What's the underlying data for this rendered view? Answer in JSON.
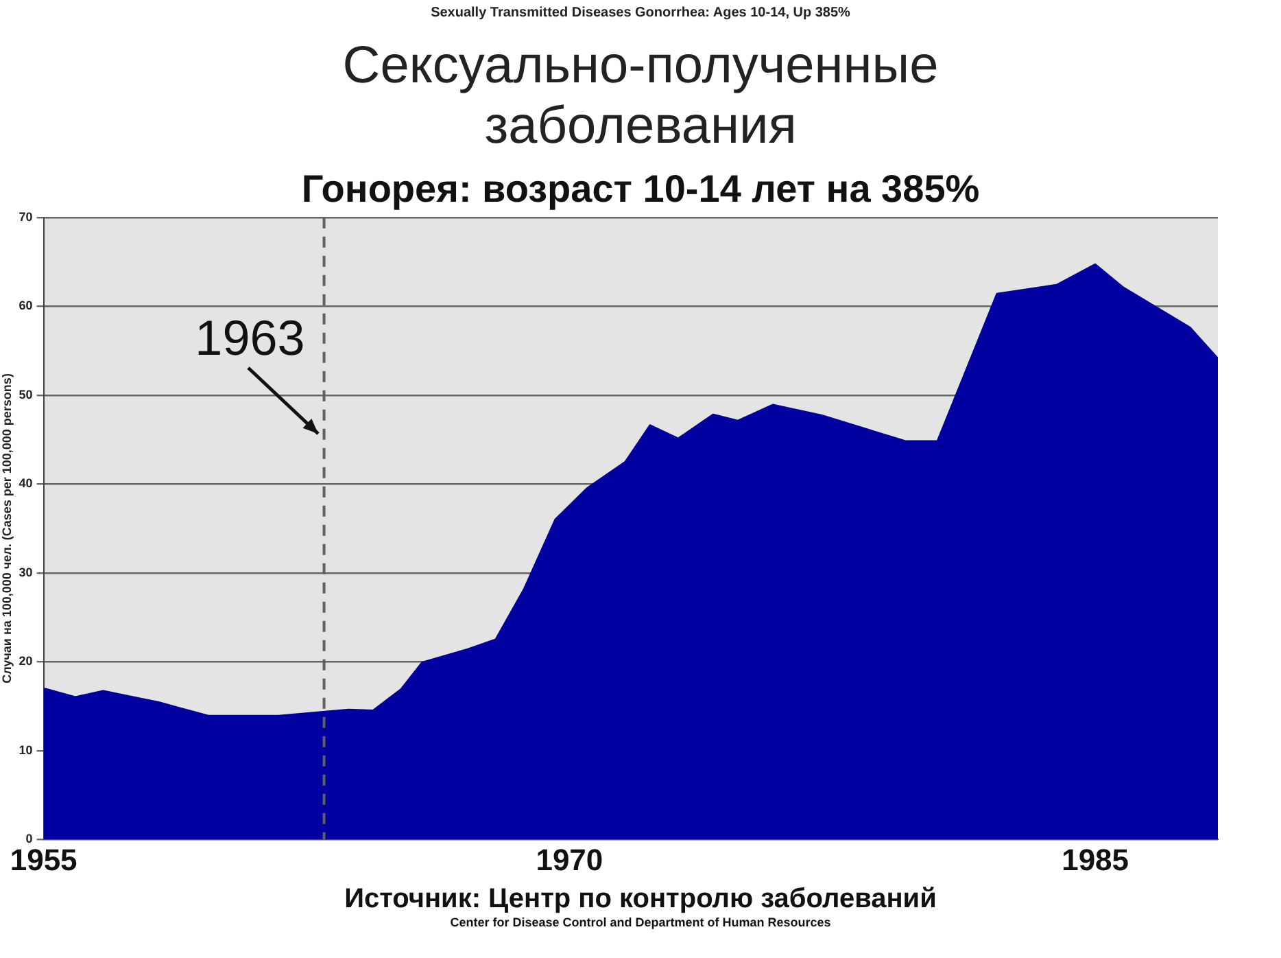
{
  "chart_data": {
    "type": "area",
    "title": "Сексуально-полученные заболевания",
    "subtitle": "Гонорея: возраст 10-14 лет на 385%",
    "ylabel": "Случаи на 100,000 чел. (Cases per 100,000 persons)",
    "annotations": [
      "Sexually Transmitted Diseases Gonorrhea: Ages 10-14, Up 385%",
      "Источник: Центр по контролю заболеваний",
      "Center for Disease Control and Department of Human Resources"
    ],
    "x": [
      1955,
      1955.9,
      1956.7,
      1958.3,
      1959.7,
      1961.7,
      1963.7,
      1964.4,
      1965.2,
      1965.8,
      1967.1,
      1967.9,
      1968.7,
      1969.6,
      1970.5,
      1971.6,
      1972.3,
      1973.1,
      1974.1,
      1974.8,
      1975.8,
      1977.2,
      1979.6,
      1980.5,
      1982.2,
      1983.9,
      1985,
      1985.8,
      1987.7,
      1988.5
    ],
    "series": [
      {
        "color": "#0000a0",
        "values": [
          17,
          16,
          16.7,
          15.4,
          13.9,
          13.9,
          14.6,
          14.5,
          16.9,
          19.9,
          21.4,
          22.5,
          28.1,
          36,
          39.5,
          42.5,
          46.6,
          45.1,
          47.8,
          47.1,
          48.9,
          47.7,
          44.8,
          44.8,
          61.4,
          62.4,
          64.7,
          62.1,
          57.6,
          54.1
        ]
      }
    ],
    "xlim": [
      1955,
      1988.5
    ],
    "xticks": [
      1955,
      1970,
      1985
    ],
    "ylim": [
      0,
      70
    ],
    "yticks": [
      0,
      10,
      20,
      30,
      40,
      50,
      60,
      70
    ],
    "grid": "y",
    "marker": "none",
    "ref_lines": [
      {
        "axis": "x",
        "value": 1963,
        "label": "1963",
        "color": "#606060",
        "line_style": "dashed"
      }
    ]
  }
}
